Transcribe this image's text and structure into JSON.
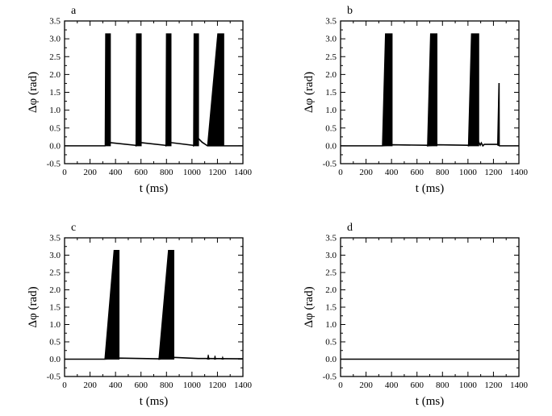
{
  "figure": {
    "colors": {
      "background": "#ffffff",
      "ink": "#000000"
    },
    "panel_order": [
      "a",
      "b",
      "c",
      "d"
    ]
  },
  "chart_data": {
    "type": "line",
    "layout": "2x2-grid",
    "title": "",
    "xlabel": "t (ms)",
    "ylabel": "Δφ (rad)",
    "xlim": [
      0,
      1400
    ],
    "ylim": [
      -0.5,
      3.5
    ],
    "grid": false,
    "legend": null,
    "x_major_ticks": [
      0,
      200,
      400,
      600,
      800,
      1000,
      1200,
      1400
    ],
    "x_minor_ticks": [
      100,
      300,
      500,
      700,
      900,
      1100,
      1300
    ],
    "y_major_ticks": [
      -0.5,
      0.0,
      0.5,
      1.0,
      1.5,
      2.0,
      2.5,
      3.0,
      3.5
    ],
    "y_minor_ticks": [
      -0.25,
      0.25,
      0.75,
      1.25,
      1.75,
      2.25,
      2.75,
      3.25
    ],
    "y_tick_labels": [
      "-0.5",
      "0.0",
      "0.5",
      "1.0",
      "1.5",
      "2.0",
      "2.5",
      "3.0",
      "3.5"
    ],
    "pulse_peak_rad": 3.14,
    "panels": [
      {
        "label": "a",
        "description": "Five pi-amplitude pulse bursts; last burst wide with ramped onset",
        "baseline": [
          [
            0,
            0
          ],
          [
            318,
            0
          ],
          [
            360,
            0.09
          ],
          [
            556,
            0.015
          ],
          [
            560,
            0
          ],
          [
            602,
            0.09
          ],
          [
            791,
            0.015
          ],
          [
            795,
            0
          ],
          [
            836,
            0.09
          ],
          [
            1008,
            0.015
          ],
          [
            1012,
            0
          ],
          [
            1052,
            0.2
          ],
          [
            1080,
            0.1
          ],
          [
            1122,
            0
          ],
          [
            1250,
            0
          ],
          [
            1400,
            0
          ]
        ],
        "pulses": [
          [
            [
              318,
              0
            ],
            [
              322,
              3.14
            ],
            [
              360,
              3.14
            ],
            [
              360,
              0
            ]
          ],
          [
            [
              560,
              0
            ],
            [
              564,
              3.14
            ],
            [
              602,
              3.14
            ],
            [
              602,
              0
            ]
          ],
          [
            [
              795,
              0
            ],
            [
              799,
              3.14
            ],
            [
              836,
              3.14
            ],
            [
              836,
              0
            ]
          ],
          [
            [
              1012,
              0
            ],
            [
              1016,
              3.14
            ],
            [
              1052,
              3.14
            ],
            [
              1052,
              0
            ]
          ],
          [
            [
              1122,
              0
            ],
            [
              1202,
              3.14
            ],
            [
              1250,
              3.14
            ],
            [
              1250,
              0
            ]
          ]
        ]
      },
      {
        "label": "b",
        "description": "Three pi-amplitude bursts plus one narrow spike reaching about 1.75 rad near t=1245",
        "baseline": [
          [
            0,
            0
          ],
          [
            328,
            0
          ],
          [
            405,
            0.03
          ],
          [
            678,
            0.015
          ],
          [
            682,
            0
          ],
          [
            757,
            0.03
          ],
          [
            999,
            0.015
          ],
          [
            1003,
            0
          ],
          [
            1085,
            0.1
          ],
          [
            1097,
            0.02
          ],
          [
            1105,
            0.08
          ],
          [
            1117,
            0
          ],
          [
            1128,
            0.04
          ],
          [
            1232,
            0.04
          ],
          [
            1247,
            0
          ],
          [
            1400,
            0
          ]
        ],
        "pulses": [
          [
            [
              328,
              0
            ],
            [
              352,
              3.14
            ],
            [
              405,
              3.14
            ],
            [
              405,
              0
            ]
          ],
          [
            [
              682,
              0
            ],
            [
              706,
              3.14
            ],
            [
              757,
              3.14
            ],
            [
              757,
              0
            ]
          ],
          [
            [
              1003,
              0
            ],
            [
              1027,
              3.14
            ],
            [
              1085,
              3.14
            ],
            [
              1085,
              0
            ]
          ],
          [
            [
              1232,
              0.02
            ],
            [
              1242,
              1.75
            ],
            [
              1246,
              1.75
            ],
            [
              1247,
              0
            ]
          ]
        ]
      },
      {
        "label": "c",
        "description": "Two ramped pi-amplitude bursts plus three tiny blips near t=1128, 1181, 1241",
        "baseline": [
          [
            0,
            0
          ],
          [
            316,
            0
          ],
          [
            428,
            0.03
          ],
          [
            736,
            0.01
          ],
          [
            740,
            0
          ],
          [
            858,
            0.05
          ],
          [
            1050,
            0.02
          ],
          [
            1400,
            0.01
          ]
        ],
        "pulses": [
          [
            [
              316,
              0
            ],
            [
              388,
              3.14
            ],
            [
              428,
              3.14
            ],
            [
              428,
              0
            ]
          ],
          [
            [
              740,
              0
            ],
            [
              815,
              3.14
            ],
            [
              858,
              3.14
            ],
            [
              858,
              0
            ]
          ],
          [
            [
              1122,
              0
            ],
            [
              1128,
              0.13
            ],
            [
              1135,
              0
            ]
          ],
          [
            [
              1176,
              0
            ],
            [
              1181,
              0.1
            ],
            [
              1186,
              0
            ]
          ],
          [
            [
              1236,
              0
            ],
            [
              1241,
              0.06
            ],
            [
              1246,
              0
            ]
          ]
        ]
      },
      {
        "label": "d",
        "description": "Flat line at zero, no pulses",
        "baseline": [
          [
            0,
            0
          ],
          [
            1400,
            0
          ]
        ],
        "pulses": []
      }
    ]
  }
}
